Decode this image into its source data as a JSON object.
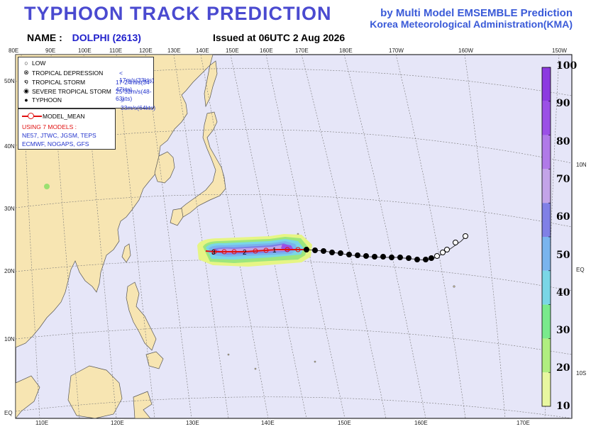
{
  "header": {
    "title": "TYPHOON TRACK PREDICTION",
    "agency_line1": "by Multi Model EMSEMBLE Prediction",
    "agency_line2": "Korea Meteorological Administration(KMA)",
    "name_label": "NAME :",
    "name_value": "DOLPHI (2613)",
    "issued": "Issued at  06UTC  2 Aug 2026"
  },
  "map": {
    "top_lon_labels": [
      "80E",
      "90E",
      "100E",
      "110E",
      "120E",
      "130E",
      "140E",
      "150E",
      "160E",
      "170E",
      "180E",
      "170W",
      "160W",
      "150W"
    ],
    "bottom_lon_labels": [
      "110E",
      "120E",
      "130E",
      "140E",
      "150E",
      "160E",
      "170E"
    ],
    "left_lat_labels": [
      "50N",
      "40N",
      "30N",
      "20N",
      "10N",
      "EQ"
    ],
    "right_lat_labels": [
      "10N",
      "EQ",
      "10S"
    ],
    "track_labels": [
      "3",
      "2",
      "1"
    ],
    "colors": {
      "ocean": "#e6e6f8",
      "land": "#f7e5b2",
      "track": "#e01010",
      "grid": "#666666"
    }
  },
  "legend": {
    "items": [
      {
        "icon": "circle-icon",
        "label": "LOW",
        "value": ""
      },
      {
        "icon": "circle-x-icon",
        "label": "TROPICAL DEPRESSION",
        "value": "< 17m/s(33kts)"
      },
      {
        "icon": "tropical-storm-icon",
        "label": "TROPICAL STORM",
        "value": "17-24m/s(34-47kts)"
      },
      {
        "icon": "severe-storm-icon",
        "label": "SEVERE TROPICAL STORM",
        "value": "25-32m/s(48-63kts)"
      },
      {
        "icon": "typhoon-icon",
        "label": "TYPHOON",
        "value": "> 33m/s(64kts)"
      }
    ],
    "model_mean": "MODEL_MEAN",
    "using": "USING 7 MODELS :",
    "models_line1": "NE57, JTWC, JGSM, TEPS",
    "models_line2": "ECMWF, NOGAPS, GFS"
  },
  "colorbar": {
    "labels": [
      "100",
      "90",
      "80",
      "70",
      "60",
      "50",
      "40",
      "30",
      "20",
      "10"
    ],
    "colors": [
      "#8c3ae0",
      "#9b50e6",
      "#b07ae8",
      "#c3a4e8",
      "#8080e6",
      "#7ab4ee",
      "#7ad6e6",
      "#7aea8c",
      "#b0ee80",
      "#e8f7a0"
    ]
  }
}
